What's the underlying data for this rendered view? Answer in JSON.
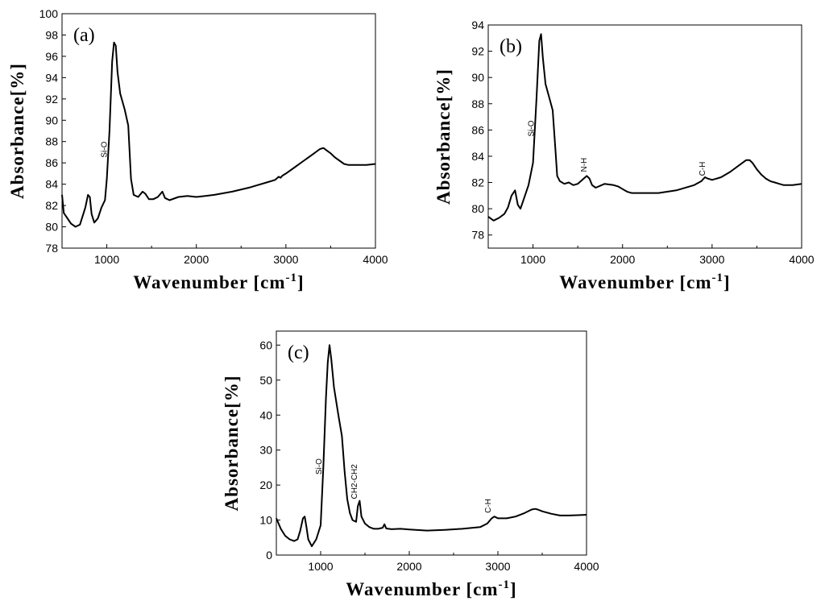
{
  "chart_data": [
    {
      "type": "line",
      "panel_label": "(a)",
      "xlabel": "Wavenumber [cm",
      "xlabel_sup": "-1",
      "xlabel_end": "]",
      "ylabel": "Absorbance[%]",
      "xlim": [
        500,
        4000
      ],
      "ylim": [
        78,
        100
      ],
      "xticks": [
        1000,
        2000,
        3000,
        4000
      ],
      "yticks": [
        78,
        80,
        82,
        84,
        86,
        88,
        90,
        92,
        94,
        96,
        98,
        100
      ],
      "annotations": [
        {
          "text": "Si-O",
          "x": 1000,
          "y": 86.5
        }
      ],
      "series": [
        {
          "name": "(a)",
          "x": [
            500,
            520,
            560,
            600,
            650,
            700,
            760,
            790,
            810,
            830,
            860,
            900,
            940,
            980,
            1000,
            1030,
            1060,
            1080,
            1100,
            1120,
            1150,
            1200,
            1240,
            1270,
            1300,
            1350,
            1400,
            1430,
            1470,
            1520,
            1570,
            1620,
            1650,
            1700,
            1800,
            1900,
            2000,
            2100,
            2200,
            2400,
            2600,
            2800,
            2880,
            2920,
            2940,
            2960,
            3000,
            3100,
            3200,
            3300,
            3380,
            3420,
            3450,
            3500,
            3550,
            3600,
            3650,
            3700,
            3800,
            3900,
            4000
          ],
          "y": [
            83.0,
            81.3,
            80.8,
            80.3,
            80.0,
            80.2,
            81.8,
            83.0,
            82.8,
            81.2,
            80.4,
            80.8,
            81.8,
            82.5,
            84.5,
            89.0,
            95.5,
            97.3,
            97.0,
            94.5,
            92.5,
            91.0,
            89.5,
            84.5,
            83.0,
            82.8,
            83.3,
            83.1,
            82.6,
            82.6,
            82.8,
            83.3,
            82.7,
            82.5,
            82.8,
            82.9,
            82.8,
            82.9,
            83.0,
            83.3,
            83.7,
            84.2,
            84.4,
            84.7,
            84.6,
            84.8,
            85.0,
            85.6,
            86.2,
            86.8,
            87.3,
            87.4,
            87.2,
            86.9,
            86.5,
            86.2,
            85.9,
            85.8,
            85.8,
            85.8,
            85.9
          ]
        }
      ]
    },
    {
      "type": "line",
      "panel_label": "(b)",
      "xlabel": "Wavenumber [cm",
      "xlabel_sup": "-1",
      "xlabel_end": "]",
      "ylabel": "Absorbance[%]",
      "xlim": [
        500,
        4000
      ],
      "ylim": [
        77,
        94
      ],
      "xticks": [
        1000,
        2000,
        3000,
        4000
      ],
      "yticks": [
        78,
        80,
        82,
        84,
        86,
        88,
        90,
        92,
        94
      ],
      "annotations": [
        {
          "text": "Si-O",
          "x": 1010,
          "y": 85.5
        },
        {
          "text": "N-H",
          "x": 1600,
          "y": 82.8
        },
        {
          "text": "C-H",
          "x": 2920,
          "y": 82.5
        }
      ],
      "series": [
        {
          "name": "(b)",
          "x": [
            500,
            560,
            620,
            680,
            720,
            760,
            800,
            830,
            860,
            900,
            950,
            1000,
            1040,
            1070,
            1090,
            1110,
            1140,
            1180,
            1220,
            1250,
            1270,
            1300,
            1350,
            1400,
            1450,
            1500,
            1550,
            1600,
            1630,
            1660,
            1700,
            1800,
            1900,
            1950,
            2000,
            2050,
            2100,
            2200,
            2400,
            2600,
            2800,
            2880,
            2920,
            2950,
            3000,
            3100,
            3200,
            3300,
            3380,
            3420,
            3450,
            3500,
            3550,
            3600,
            3650,
            3700,
            3750,
            3800,
            3900,
            4000
          ],
          "y": [
            79.4,
            79.1,
            79.3,
            79.6,
            80.1,
            81.0,
            81.4,
            80.3,
            80.0,
            80.8,
            81.8,
            83.5,
            88.5,
            92.8,
            93.3,
            91.5,
            89.5,
            88.5,
            87.5,
            84.5,
            82.5,
            82.1,
            81.9,
            82.0,
            81.8,
            81.9,
            82.2,
            82.5,
            82.3,
            81.8,
            81.6,
            81.9,
            81.8,
            81.7,
            81.5,
            81.3,
            81.2,
            81.2,
            81.2,
            81.4,
            81.8,
            82.1,
            82.4,
            82.3,
            82.2,
            82.4,
            82.8,
            83.3,
            83.7,
            83.7,
            83.5,
            83.0,
            82.6,
            82.3,
            82.1,
            82.0,
            81.9,
            81.8,
            81.8,
            81.9
          ]
        }
      ]
    },
    {
      "type": "line",
      "panel_label": "(c)",
      "xlabel": "Wavenumber [cm",
      "xlabel_sup": "-1",
      "xlabel_end": "]",
      "ylabel": "Absorbance[%]",
      "xlim": [
        500,
        4000
      ],
      "ylim": [
        0,
        64
      ],
      "xticks": [
        1000,
        2000,
        3000,
        4000
      ],
      "yticks": [
        0,
        10,
        20,
        30,
        40,
        50,
        60
      ],
      "annotations": [
        {
          "text": "Si-O",
          "x": 1010,
          "y": 23
        },
        {
          "text": "CH2-CH2",
          "x": 1410,
          "y": 16
        },
        {
          "text": "C-H",
          "x": 2920,
          "y": 12
        }
      ],
      "series": [
        {
          "name": "(c)",
          "x": [
            500,
            550,
            600,
            650,
            700,
            740,
            770,
            800,
            820,
            840,
            860,
            900,
            950,
            1000,
            1030,
            1060,
            1080,
            1100,
            1120,
            1150,
            1200,
            1240,
            1270,
            1300,
            1330,
            1360,
            1400,
            1420,
            1440,
            1460,
            1500,
            1550,
            1600,
            1650,
            1700,
            1720,
            1740,
            1800,
            1900,
            2000,
            2200,
            2400,
            2600,
            2800,
            2880,
            2930,
            2960,
            3000,
            3100,
            3200,
            3300,
            3380,
            3420,
            3450,
            3500,
            3600,
            3700,
            3800,
            3900,
            4000
          ],
          "y": [
            10.5,
            7.5,
            5.5,
            4.5,
            4.0,
            4.5,
            7.0,
            10.5,
            11.0,
            8.0,
            4.5,
            2.5,
            4.5,
            8.5,
            25.0,
            45.0,
            55.0,
            60.0,
            56.0,
            48.0,
            40.0,
            34.0,
            24.0,
            16.0,
            12.0,
            10.0,
            9.5,
            14.0,
            15.5,
            11.0,
            9.0,
            8.0,
            7.5,
            7.5,
            7.8,
            8.8,
            7.6,
            7.4,
            7.5,
            7.3,
            7.0,
            7.2,
            7.5,
            8.0,
            9.0,
            10.5,
            11.0,
            10.5,
            10.5,
            11.0,
            12.0,
            13.0,
            13.2,
            13.0,
            12.5,
            11.8,
            11.3,
            11.3,
            11.4,
            11.5
          ]
        }
      ]
    }
  ]
}
